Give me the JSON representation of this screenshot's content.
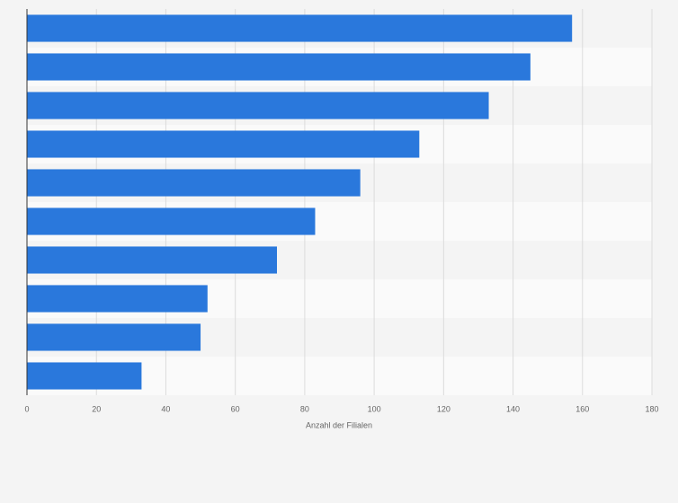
{
  "chart_data": {
    "type": "bar",
    "orientation": "horizontal",
    "categories": [
      null,
      null,
      null,
      null,
      null,
      null,
      null,
      null,
      null,
      null
    ],
    "values": [
      157,
      145,
      133,
      113,
      96,
      83,
      72,
      52,
      50,
      33
    ],
    "color": "#2a78dc",
    "xlabel": "Anzahl der Filialen",
    "xlim": [
      0,
      180
    ],
    "xticks": [
      0,
      20,
      40,
      60,
      80,
      100,
      120,
      140,
      160,
      180
    ],
    "grid": true
  }
}
